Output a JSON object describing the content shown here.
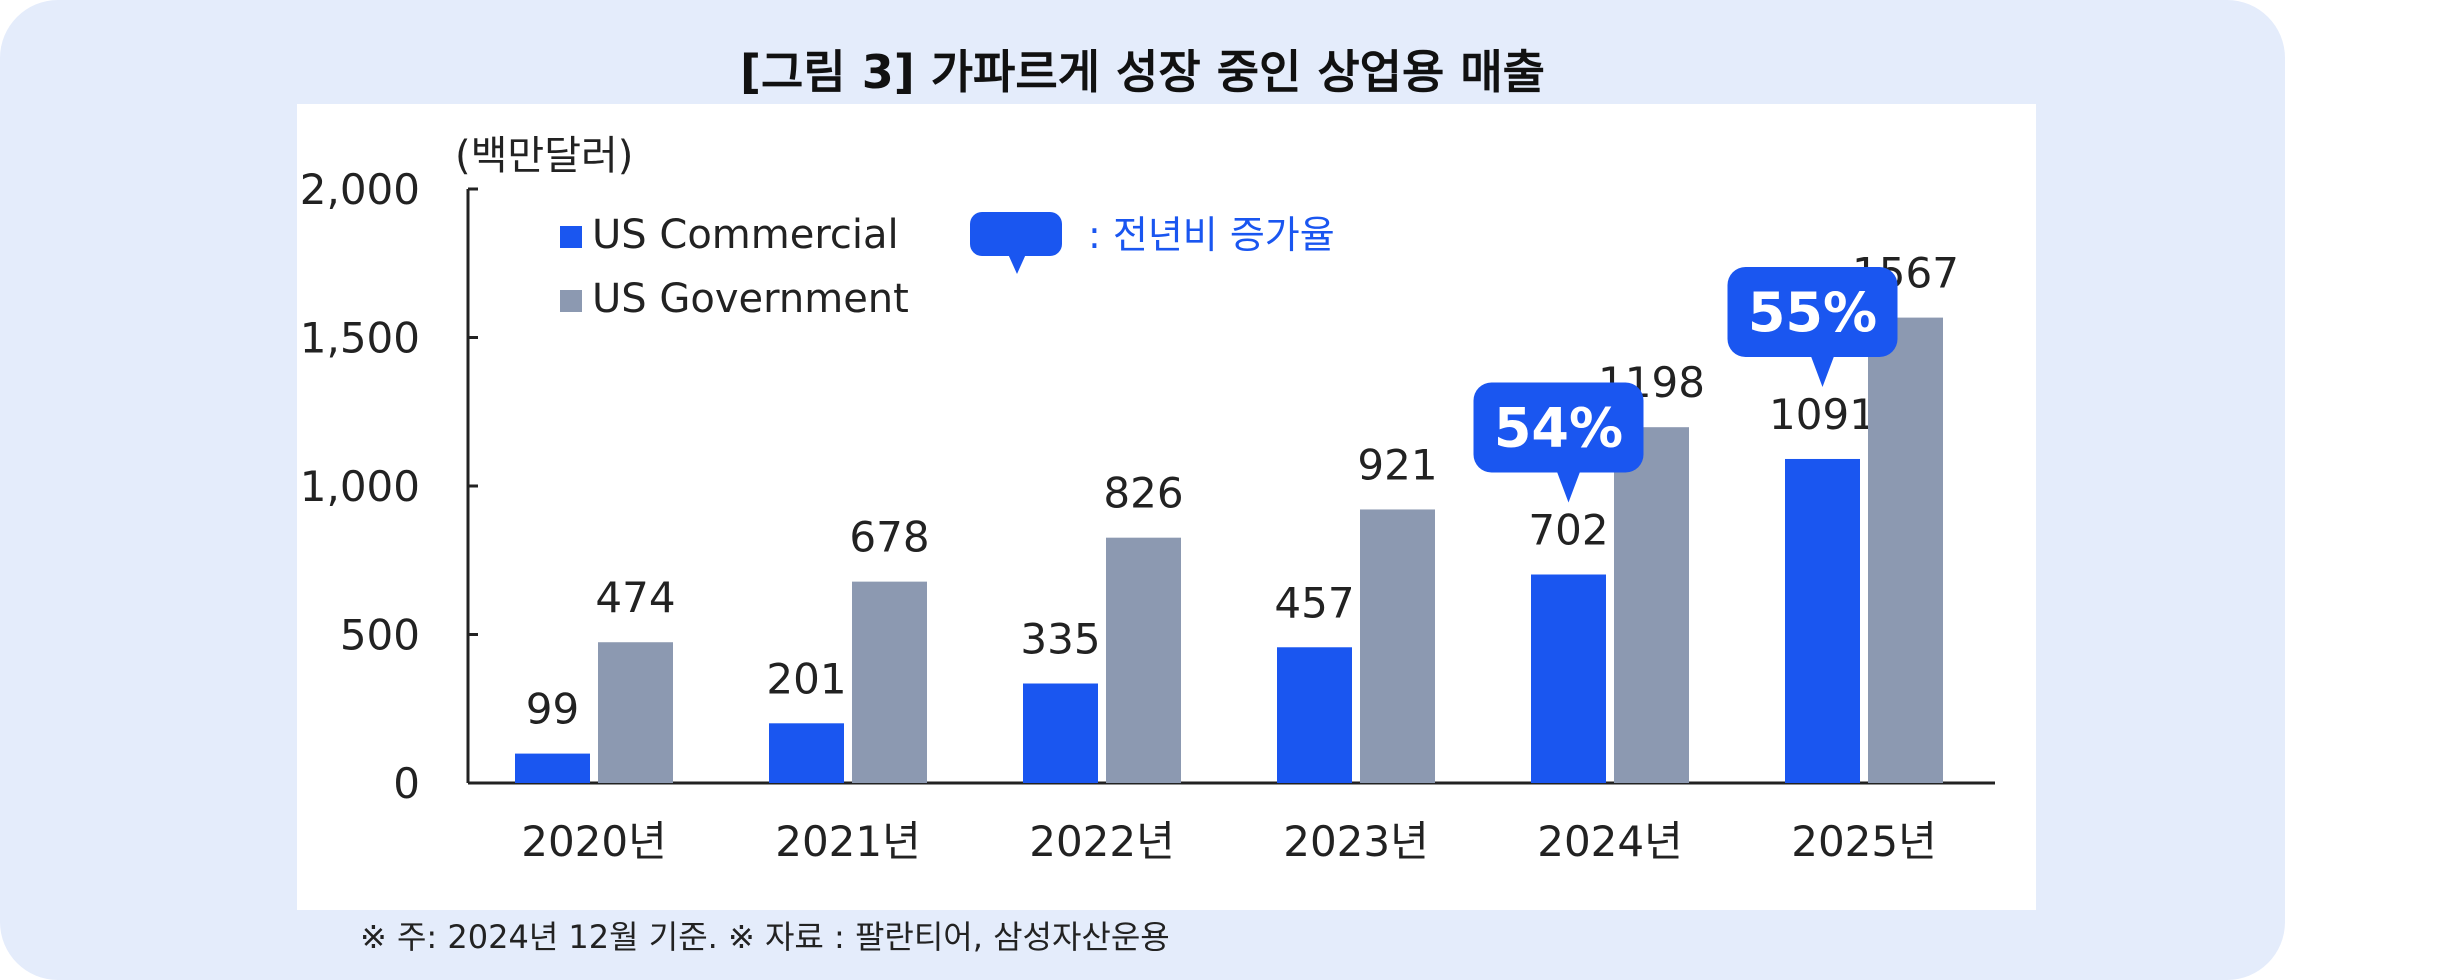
{
  "title": "[그림 3] 가파르게 성장 중인 상업용 매출",
  "note": "※ 주: 2024년 12월 기준. ※ 자료 : 팔란티어, 삼성자산운용",
  "chart_data": {
    "type": "bar",
    "title": "[그림 3] 가파르게 성장 중인 상업용 매출",
    "ylabel": "(백만달러)",
    "xlabel": "",
    "categories": [
      "2020년",
      "2021년",
      "2022년",
      "2023년",
      "2024년",
      "2025년"
    ],
    "series": [
      {
        "name": "US Commercial",
        "values": [
          99,
          201,
          335,
          457,
          702,
          1091
        ],
        "color": "#1a56f0"
      },
      {
        "name": "US Government",
        "values": [
          474,
          678,
          826,
          921,
          1198,
          1567
        ],
        "color": "#8c99b1"
      }
    ],
    "ylim": [
      0,
      2000
    ],
    "yticks": [
      0,
      500,
      1000,
      1500,
      2000
    ],
    "ytick_labels": [
      "0",
      "500",
      "1,000",
      "1,500",
      "2,000"
    ],
    "legend_position": "top-left",
    "growth_legend_label": ": 전년비 증가율",
    "annotations": [
      {
        "category": "2024년",
        "text": "54%"
      },
      {
        "category": "2025년",
        "text": "55%"
      }
    ],
    "grid": false,
    "colors": {
      "commercial": "#1a56f0",
      "government": "#8c99b1",
      "callout": "#1a56f0"
    }
  }
}
